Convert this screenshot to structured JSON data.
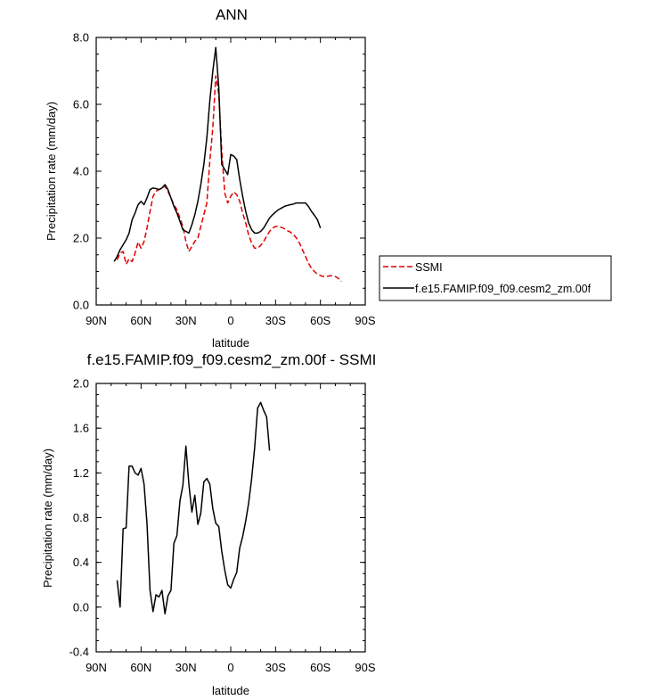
{
  "chart_data": [
    {
      "type": "line",
      "title": "ANN",
      "xlabel": "latitude",
      "ylabel": "Precipitation rate (mm/day)",
      "xlim": [
        90,
        -90
      ],
      "ylim": [
        0,
        8
      ],
      "x_ticks": [
        {
          "value": 90,
          "label": "90N"
        },
        {
          "value": 60,
          "label": "60N"
        },
        {
          "value": 30,
          "label": "30N"
        },
        {
          "value": 0,
          "label": "0"
        },
        {
          "value": -30,
          "label": "30S"
        },
        {
          "value": -60,
          "label": "60S"
        },
        {
          "value": -90,
          "label": "90S"
        }
      ],
      "y_ticks": [
        {
          "value": 0,
          "label": "0.0"
        },
        {
          "value": 2,
          "label": "2.0"
        },
        {
          "value": 4,
          "label": "4.0"
        },
        {
          "value": 6,
          "label": "6.0"
        },
        {
          "value": 8,
          "label": "8.0"
        }
      ],
      "legend_position": "right",
      "series": [
        {
          "name": "SSMI",
          "color": "#e00000",
          "dash": true,
          "points": [
            [
              76,
              1.35
            ],
            [
              74,
              1.55
            ],
            [
              72,
              1.6
            ],
            [
              70,
              1.22
            ],
            [
              68,
              1.38
            ],
            [
              66,
              1.3
            ],
            [
              64,
              1.55
            ],
            [
              62,
              1.88
            ],
            [
              60,
              1.7
            ],
            [
              58,
              1.9
            ],
            [
              56,
              2.3
            ],
            [
              54,
              2.8
            ],
            [
              52,
              3.25
            ],
            [
              50,
              3.4
            ],
            [
              48,
              3.45
            ],
            [
              46,
              3.5
            ],
            [
              44,
              3.55
            ],
            [
              42,
              3.4
            ],
            [
              40,
              3.2
            ],
            [
              38,
              3.0
            ],
            [
              36,
              2.85
            ],
            [
              34,
              2.6
            ],
            [
              32,
              2.35
            ],
            [
              30,
              1.9
            ],
            [
              28,
              1.6
            ],
            [
              26,
              1.75
            ],
            [
              24,
              1.9
            ],
            [
              22,
              2.0
            ],
            [
              20,
              2.35
            ],
            [
              18,
              2.7
            ],
            [
              16,
              3.05
            ],
            [
              14,
              4.3
            ],
            [
              12,
              5.3
            ],
            [
              10,
              6.85
            ],
            [
              8,
              6.3
            ],
            [
              6,
              4.6
            ],
            [
              4,
              3.35
            ],
            [
              2,
              3.05
            ],
            [
              0,
              3.25
            ],
            [
              -2,
              3.38
            ],
            [
              -4,
              3.3
            ],
            [
              -6,
              3.1
            ],
            [
              -8,
              2.75
            ],
            [
              -10,
              2.45
            ],
            [
              -12,
              2.1
            ],
            [
              -14,
              1.85
            ],
            [
              -16,
              1.7
            ],
            [
              -18,
              1.7
            ],
            [
              -20,
              1.78
            ],
            [
              -22,
              1.9
            ],
            [
              -24,
              2.05
            ],
            [
              -26,
              2.2
            ],
            [
              -28,
              2.3
            ],
            [
              -30,
              2.35
            ],
            [
              -32,
              2.35
            ],
            [
              -34,
              2.32
            ],
            [
              -36,
              2.28
            ],
            [
              -38,
              2.22
            ],
            [
              -40,
              2.18
            ],
            [
              -42,
              2.1
            ],
            [
              -44,
              2.0
            ],
            [
              -46,
              1.85
            ],
            [
              -48,
              1.65
            ],
            [
              -50,
              1.45
            ],
            [
              -52,
              1.25
            ],
            [
              -54,
              1.1
            ],
            [
              -56,
              1.0
            ],
            [
              -58,
              0.92
            ],
            [
              -60,
              0.88
            ],
            [
              -62,
              0.85
            ],
            [
              -64,
              0.85
            ],
            [
              -66,
              0.87
            ],
            [
              -68,
              0.88
            ],
            [
              -70,
              0.85
            ],
            [
              -72,
              0.8
            ],
            [
              -74,
              0.7
            ]
          ]
        },
        {
          "name": "f.e15.FAMIP.f09_f09.cesm2_zm.00f",
          "color": "#000000",
          "dash": false,
          "points": [
            [
              78,
              1.3
            ],
            [
              76,
              1.45
            ],
            [
              74,
              1.65
            ],
            [
              72,
              1.8
            ],
            [
              70,
              1.95
            ],
            [
              68,
              2.15
            ],
            [
              66,
              2.55
            ],
            [
              64,
              2.75
            ],
            [
              62,
              3.0
            ],
            [
              60,
              3.1
            ],
            [
              58,
              3.0
            ],
            [
              56,
              3.2
            ],
            [
              54,
              3.45
            ],
            [
              52,
              3.5
            ],
            [
              50,
              3.48
            ],
            [
              48,
              3.45
            ],
            [
              46,
              3.5
            ],
            [
              44,
              3.6
            ],
            [
              42,
              3.45
            ],
            [
              40,
              3.2
            ],
            [
              38,
              2.95
            ],
            [
              36,
              2.75
            ],
            [
              34,
              2.5
            ],
            [
              32,
              2.25
            ],
            [
              30,
              2.2
            ],
            [
              28,
              2.15
            ],
            [
              26,
              2.4
            ],
            [
              24,
              2.7
            ],
            [
              22,
              3.1
            ],
            [
              20,
              3.6
            ],
            [
              18,
              4.2
            ],
            [
              16,
              5.0
            ],
            [
              14,
              6.1
            ],
            [
              12,
              7.0
            ],
            [
              10,
              7.7
            ],
            [
              8,
              6.5
            ],
            [
              6,
              4.2
            ],
            [
              4,
              4.05
            ],
            [
              2,
              3.9
            ],
            [
              0,
              4.5
            ],
            [
              -2,
              4.45
            ],
            [
              -4,
              4.35
            ],
            [
              -6,
              3.75
            ],
            [
              -8,
              3.25
            ],
            [
              -10,
              2.8
            ],
            [
              -12,
              2.45
            ],
            [
              -14,
              2.25
            ],
            [
              -16,
              2.15
            ],
            [
              -18,
              2.15
            ],
            [
              -20,
              2.2
            ],
            [
              -22,
              2.3
            ],
            [
              -24,
              2.45
            ],
            [
              -26,
              2.6
            ],
            [
              -28,
              2.7
            ],
            [
              -30,
              2.78
            ],
            [
              -32,
              2.85
            ],
            [
              -34,
              2.9
            ],
            [
              -36,
              2.95
            ],
            [
              -38,
              2.98
            ],
            [
              -40,
              3.0
            ],
            [
              -42,
              3.02
            ],
            [
              -44,
              3.05
            ],
            [
              -46,
              3.05
            ],
            [
              -48,
              3.05
            ],
            [
              -50,
              3.05
            ],
            [
              -52,
              2.95
            ],
            [
              -54,
              2.8
            ],
            [
              -56,
              2.68
            ],
            [
              -58,
              2.55
            ],
            [
              -60,
              2.3
            ]
          ]
        }
      ]
    },
    {
      "type": "line",
      "title": "f.e15.FAMIP.f09_f09.cesm2_zm.00f - SSMI",
      "xlabel": "latitude",
      "ylabel": "Precipitation rate (mm/day)",
      "xlim": [
        90,
        -90
      ],
      "ylim": [
        -0.4,
        2.0
      ],
      "x_ticks": [
        {
          "value": 90,
          "label": "90N"
        },
        {
          "value": 60,
          "label": "60N"
        },
        {
          "value": 30,
          "label": "30N"
        },
        {
          "value": 0,
          "label": "0"
        },
        {
          "value": -30,
          "label": "30S"
        },
        {
          "value": -60,
          "label": "60S"
        },
        {
          "value": -90,
          "label": "90S"
        }
      ],
      "y_ticks": [
        {
          "value": -0.4,
          "label": "-0.4"
        },
        {
          "value": 0,
          "label": "0.0"
        },
        {
          "value": 0.4,
          "label": "0.4"
        },
        {
          "value": 0.8,
          "label": "0.8"
        },
        {
          "value": 1.2,
          "label": "1.2"
        },
        {
          "value": 1.6,
          "label": "1.6"
        },
        {
          "value": 2.0,
          "label": "2.0"
        }
      ],
      "series": [
        {
          "color": "#000000",
          "dash": false,
          "points": [
            [
              76,
              0.24
            ],
            [
              74,
              0.0
            ],
            [
              72,
              0.7
            ],
            [
              70,
              0.71
            ],
            [
              68,
              1.26
            ],
            [
              66,
              1.26
            ],
            [
              64,
              1.2
            ],
            [
              62,
              1.18
            ],
            [
              60,
              1.24
            ],
            [
              58,
              1.1
            ],
            [
              56,
              0.75
            ],
            [
              54,
              0.15
            ],
            [
              52,
              -0.04
            ],
            [
              50,
              0.11
            ],
            [
              48,
              0.09
            ],
            [
              46,
              0.15
            ],
            [
              44,
              -0.06
            ],
            [
              42,
              0.1
            ],
            [
              40,
              0.15
            ],
            [
              38,
              0.57
            ],
            [
              36,
              0.64
            ],
            [
              34,
              0.95
            ],
            [
              32,
              1.09
            ],
            [
              30,
              1.44
            ],
            [
              28,
              1.1
            ],
            [
              26,
              0.85
            ],
            [
              24,
              1.0
            ],
            [
              22,
              0.74
            ],
            [
              20,
              0.84
            ],
            [
              18,
              1.12
            ],
            [
              16,
              1.15
            ],
            [
              14,
              1.1
            ],
            [
              12,
              0.88
            ],
            [
              10,
              0.75
            ],
            [
              8,
              0.72
            ],
            [
              6,
              0.5
            ],
            [
              4,
              0.33
            ],
            [
              2,
              0.2
            ],
            [
              0,
              0.17
            ],
            [
              -2,
              0.25
            ],
            [
              -4,
              0.31
            ],
            [
              -6,
              0.53
            ],
            [
              -8,
              0.63
            ],
            [
              -10,
              0.77
            ],
            [
              -12,
              0.93
            ],
            [
              -14,
              1.15
            ],
            [
              -16,
              1.42
            ],
            [
              -18,
              1.78
            ],
            [
              -20,
              1.83
            ],
            [
              -22,
              1.76
            ],
            [
              -24,
              1.7
            ],
            [
              -26,
              1.4
            ]
          ]
        }
      ]
    }
  ]
}
